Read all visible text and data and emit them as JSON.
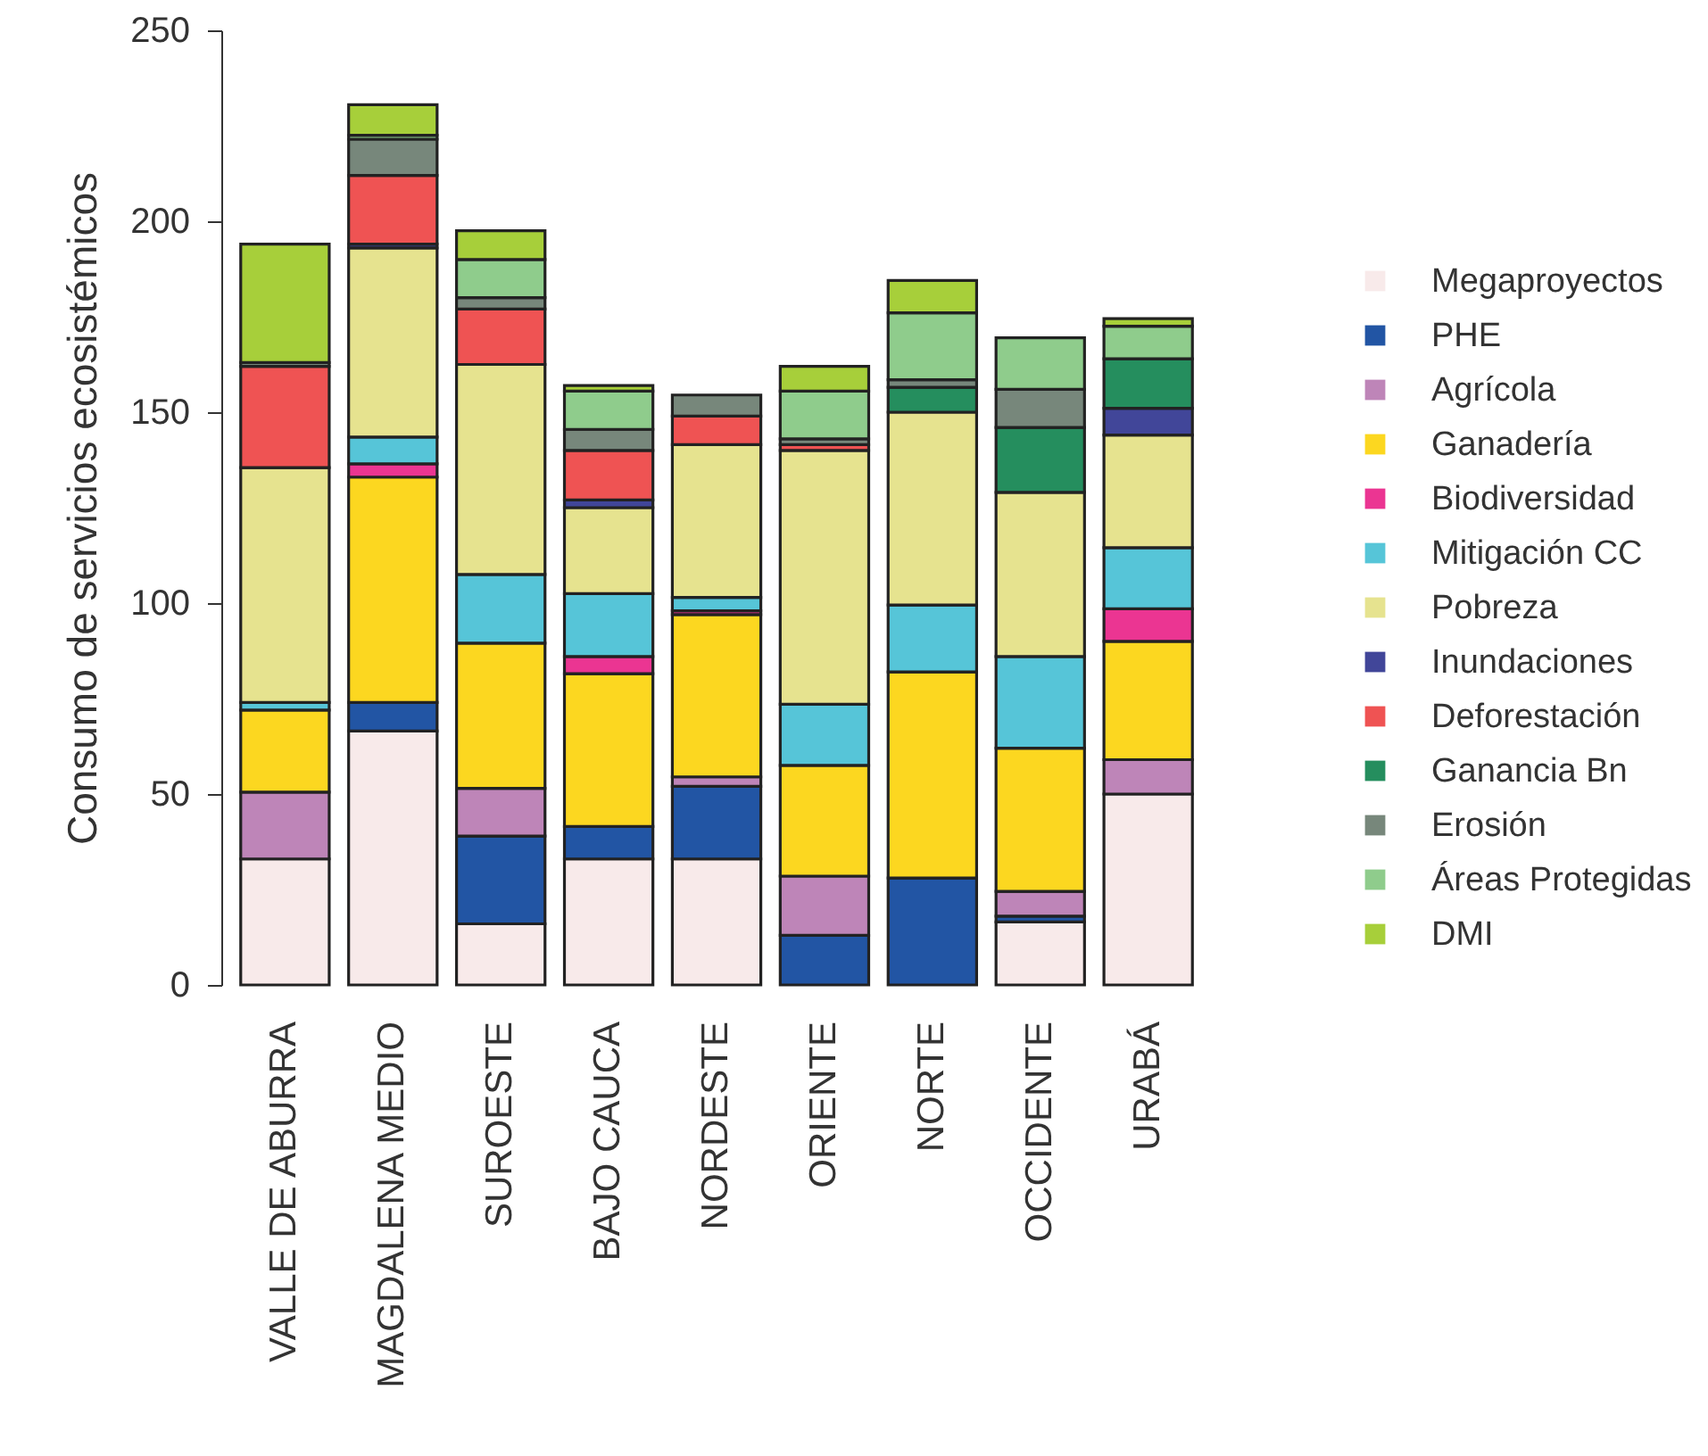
{
  "chart_data": {
    "type": "bar",
    "stacked": true,
    "ylabel": "Consumo de servicios ecosistémicos",
    "categories": [
      "VALLE DE ABURRA",
      "MAGDALENA MEDIO",
      "SUROESTE",
      "BAJO CAUCA",
      "NORDESTE",
      "ORIENTE",
      "NORTE",
      "OCCIDENTE",
      "URABÁ"
    ],
    "ylim": [
      0,
      250
    ],
    "yticks": [
      0,
      50,
      100,
      150,
      200,
      250
    ],
    "legend": "right",
    "series": [
      {
        "name": "Megaproyectos",
        "color": "#f8eaea",
        "values": [
          33,
          66.5,
          16,
          33,
          33,
          null,
          null,
          16.5,
          50
        ]
      },
      {
        "name": "PHE",
        "color": "#2255a4",
        "values": [
          null,
          7.5,
          23,
          8.5,
          19,
          13,
          28,
          1.5,
          null
        ]
      },
      {
        "name": "Agrícola",
        "color": "#be85b8",
        "values": [
          17.5,
          null,
          12.5,
          null,
          2.5,
          15.5,
          null,
          6.5,
          9
        ]
      },
      {
        "name": "Ganadería",
        "color": "#fcd720",
        "values": [
          21.5,
          59,
          38,
          40,
          42.5,
          29,
          54,
          37.5,
          31
        ]
      },
      {
        "name": "Biodiversidad",
        "color": "#eb3592",
        "values": [
          null,
          3.5,
          null,
          4.5,
          1,
          null,
          null,
          null,
          8.5
        ]
      },
      {
        "name": "Mitigación CC",
        "color": "#56c5d8",
        "values": [
          2,
          7,
          18,
          16.5,
          3.5,
          16,
          17.5,
          24,
          16
        ]
      },
      {
        "name": "Pobreza",
        "color": "#e6e38f",
        "values": [
          61.5,
          49.5,
          55,
          22.5,
          40,
          66.5,
          50.5,
          43,
          29.5
        ]
      },
      {
        "name": "Inundaciones",
        "color": "#414699",
        "values": [
          null,
          1,
          null,
          2,
          null,
          null,
          null,
          null,
          7
        ]
      },
      {
        "name": "Deforestación",
        "color": "#ef5353",
        "values": [
          26.5,
          18,
          14.5,
          13,
          7.5,
          1.5,
          null,
          null,
          null
        ]
      },
      {
        "name": "Ganancia Bn",
        "color": "#258e5e",
        "values": [
          null,
          null,
          null,
          null,
          null,
          null,
          6.5,
          17,
          13
        ]
      },
      {
        "name": "Erosión",
        "color": "#77877b",
        "values": [
          1,
          9.5,
          3,
          5.5,
          5.5,
          1.5,
          2,
          10,
          null
        ]
      },
      {
        "name": "Áreas Protegidas",
        "color": "#8fcc8c",
        "values": [
          null,
          1,
          10,
          10,
          null,
          12.5,
          17.5,
          13.5,
          8.5
        ]
      },
      {
        "name": "DMI",
        "color": "#a7cf3a",
        "values": [
          31,
          8,
          7.5,
          1.5,
          null,
          6.5,
          8.5,
          null,
          2
        ]
      }
    ]
  }
}
